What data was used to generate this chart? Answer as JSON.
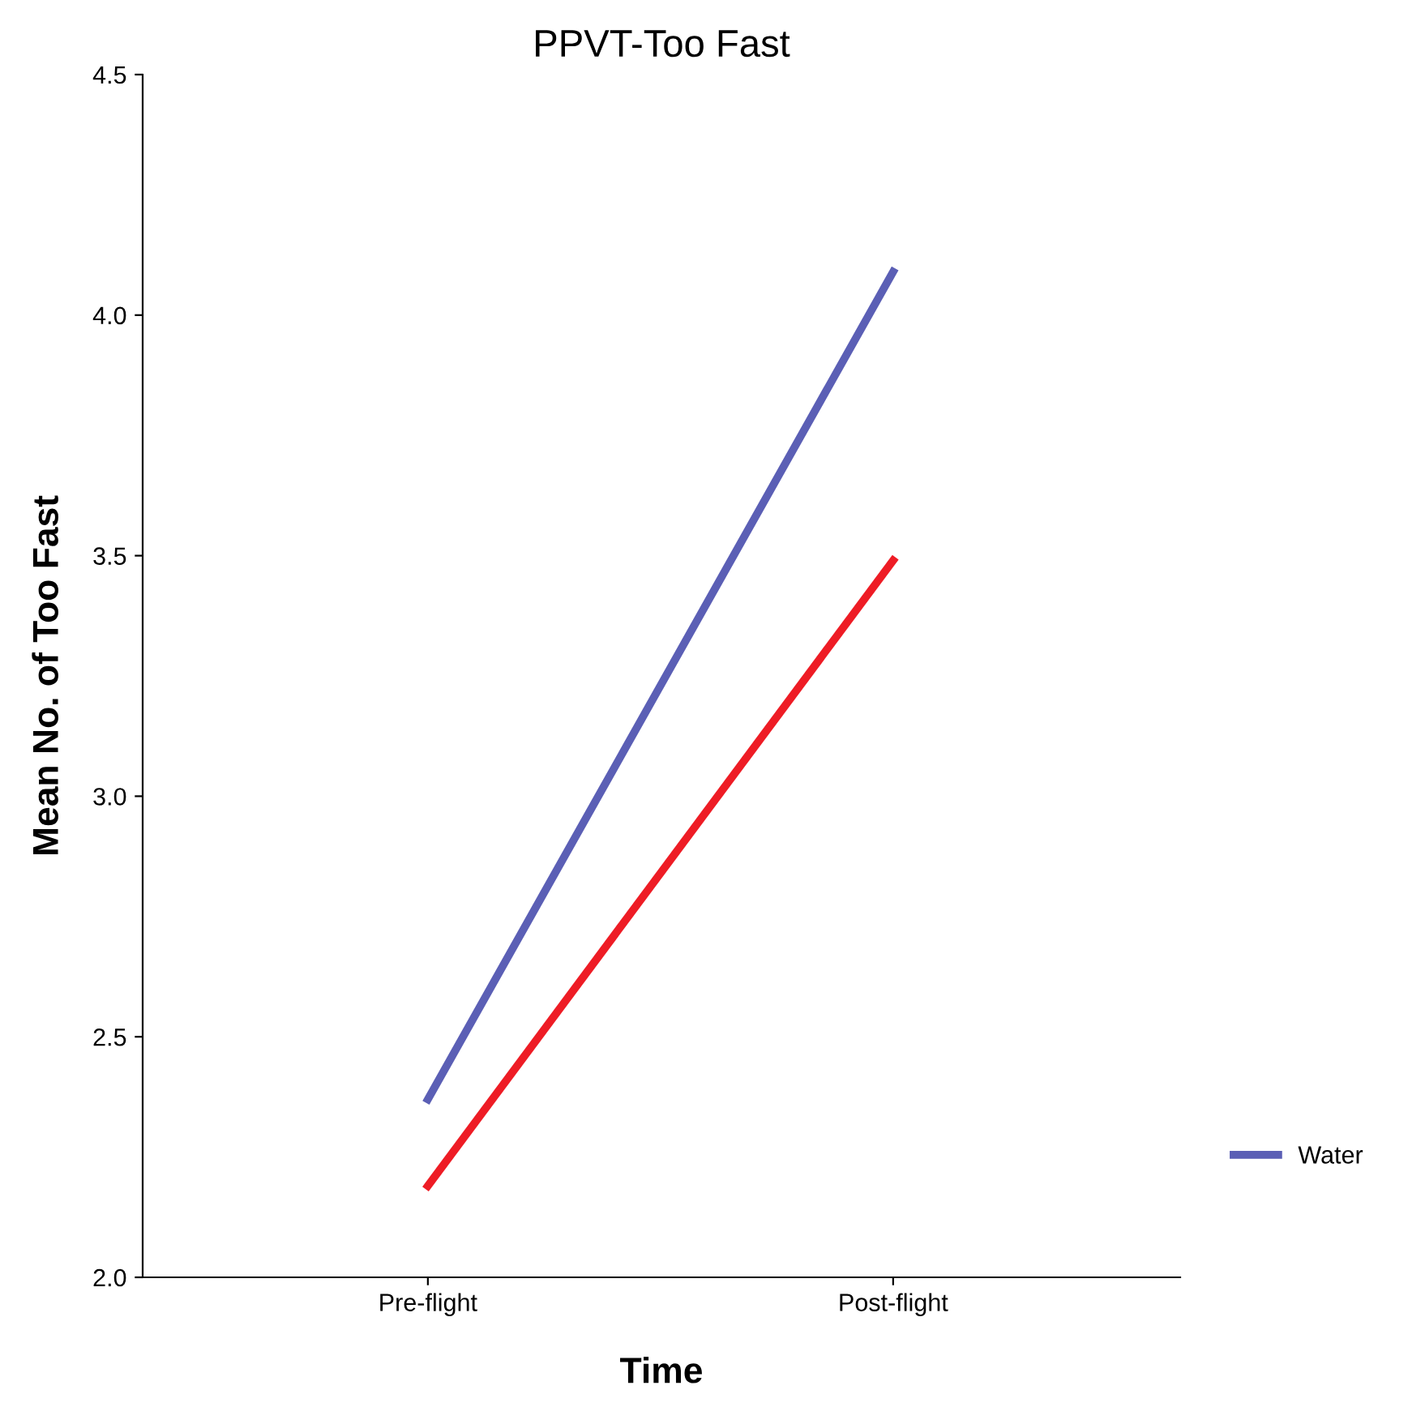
{
  "chart_data": {
    "type": "line",
    "title": "PPVT-Too Fast",
    "xlabel": "Time",
    "ylabel": "Mean No. of Too Fast",
    "categories": [
      "Pre-flight",
      "Post-flight"
    ],
    "series": [
      {
        "name": "Water",
        "color": "#5b5fb5",
        "values": [
          2.37,
          4.09
        ]
      },
      {
        "color": "#ee1c25",
        "values": [
          2.19,
          3.49
        ]
      }
    ],
    "ylim": [
      2.0,
      4.5
    ],
    "yticks": [
      {
        "value": 2.0,
        "label": "2.0"
      },
      {
        "value": 2.5,
        "label": "2.5"
      },
      {
        "value": 3.0,
        "label": "3.0"
      },
      {
        "value": 3.5,
        "label": "3.5"
      },
      {
        "value": 4.0,
        "label": "4.0"
      },
      {
        "value": 4.5,
        "label": "4.5"
      }
    ],
    "grid": false,
    "legend": "right",
    "marker": "none",
    "line_style": "solid"
  }
}
